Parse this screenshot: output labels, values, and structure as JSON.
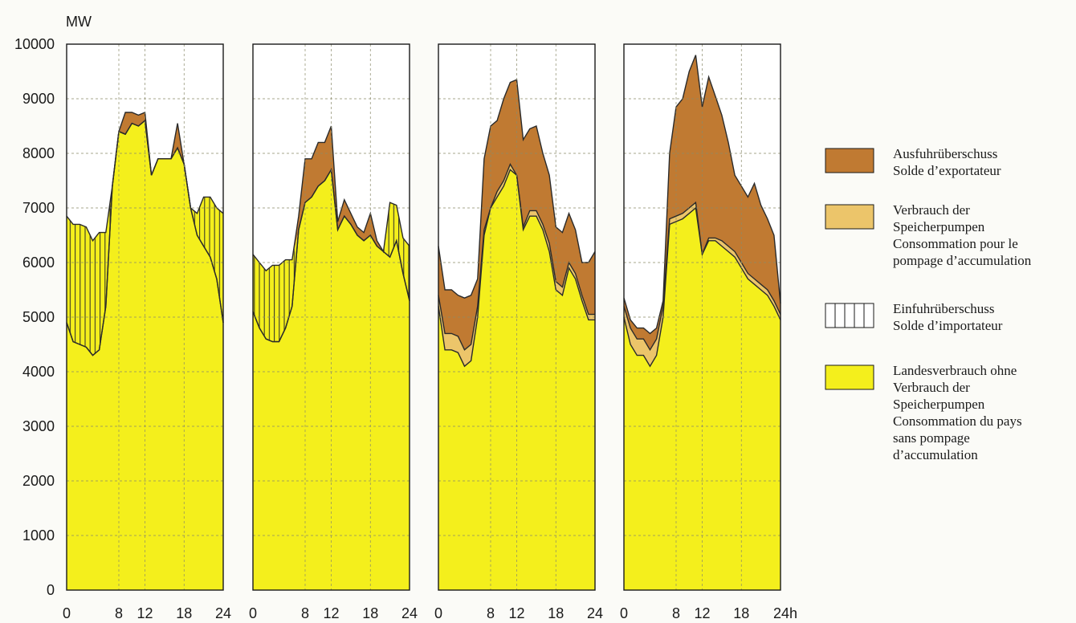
{
  "chart_data": {
    "type": "area",
    "y_unit": "MW",
    "ylim": [
      0,
      10000
    ],
    "y_ticks": [
      "0",
      "1000",
      "2000",
      "3000",
      "4000",
      "5000",
      "6000",
      "7000",
      "8000",
      "9000",
      "10000"
    ],
    "x_ticks": [
      [
        "0",
        "8",
        "12",
        "18",
        "24"
      ],
      [
        "0",
        "8",
        "12",
        "18",
        "24"
      ],
      [
        "0",
        "8",
        "12",
        "18",
        "24"
      ],
      [
        "0",
        "8",
        "12",
        "18",
        "24h"
      ]
    ],
    "grid": true,
    "colors": {
      "export": "#c07a32",
      "pumping": "#ecc56a",
      "import": "#f4ef1c",
      "consumption": "#f4ef1c",
      "outline": "#2a2a2a"
    },
    "legend": [
      {
        "key": "export",
        "lines": [
          "Ausfuhrüberschuss",
          "Solde d’exportateur"
        ]
      },
      {
        "key": "pumping",
        "lines": [
          "Verbrauch der",
          "Speicherpumpen",
          "Consommation pour le",
          "pompage d’accumulation"
        ]
      },
      {
        "key": "import",
        "lines": [
          "Einfuhrüberschuss",
          "Solde d’importateur"
        ]
      },
      {
        "key": "consumption",
        "lines": [
          "Landesverbrauch ohne",
          "Verbrauch der",
          "Speicherpumpen",
          "Consommation du pays",
          "sans pompage",
          "d’accumulation"
        ]
      }
    ],
    "x_hours": [
      0,
      1,
      2,
      3,
      4,
      5,
      6,
      7,
      8,
      9,
      10,
      11,
      12,
      13,
      14,
      15,
      16,
      17,
      18,
      19,
      20,
      21,
      22,
      23,
      24
    ],
    "panels": [
      {
        "consumption": [
          4900,
          4550,
          4500,
          4450,
          4300,
          4400,
          5200,
          7400,
          8400,
          8350,
          8550,
          8500,
          8600,
          7600,
          7900,
          7900,
          7900,
          8100,
          7800,
          7000,
          6500,
          6300,
          6100,
          5700,
          4900
        ],
        "pumping": [
          0,
          0,
          0,
          0,
          0,
          0,
          0,
          0,
          0,
          0,
          0,
          0,
          0,
          0,
          0,
          0,
          0,
          0,
          0,
          0,
          0,
          0,
          0,
          0,
          0
        ],
        "import": [
          1950,
          2150,
          2200,
          2200,
          2100,
          2150,
          1350,
          0,
          0,
          0,
          0,
          0,
          0,
          0,
          0,
          0,
          0,
          0,
          0,
          0,
          400,
          900,
          1100,
          1300,
          2000
        ],
        "export": [
          0,
          0,
          0,
          0,
          0,
          0,
          0,
          0,
          0,
          400,
          200,
          200,
          150,
          0,
          0,
          0,
          0,
          450,
          0,
          0,
          0,
          0,
          0,
          0,
          0
        ]
      },
      {
        "consumption": [
          5100,
          4800,
          4600,
          4550,
          4550,
          4800,
          5200,
          6600,
          7100,
          7200,
          7400,
          7500,
          7700,
          6600,
          6850,
          6700,
          6500,
          6400,
          6500,
          6300,
          6200,
          6100,
          6400,
          5800,
          5300
        ],
        "pumping": [
          0,
          0,
          0,
          0,
          0,
          0,
          0,
          0,
          0,
          0,
          0,
          0,
          0,
          0,
          0,
          0,
          0,
          0,
          0,
          0,
          0,
          0,
          0,
          0,
          0
        ],
        "import": [
          1050,
          1200,
          1250,
          1400,
          1400,
          1250,
          850,
          0,
          0,
          0,
          0,
          0,
          0,
          0,
          0,
          0,
          0,
          0,
          0,
          0,
          0,
          1000,
          650,
          650,
          1000
        ],
        "export": [
          0,
          0,
          0,
          0,
          0,
          0,
          0,
          250,
          800,
          700,
          800,
          700,
          800,
          150,
          300,
          200,
          150,
          150,
          400,
          100,
          0,
          0,
          0,
          0,
          0
        ]
      },
      {
        "consumption": [
          5200,
          4400,
          4400,
          4350,
          4100,
          4200,
          5000,
          6500,
          7000,
          7200,
          7400,
          7700,
          7600,
          6600,
          6850,
          6850,
          6600,
          6200,
          5500,
          5400,
          5900,
          5700,
          5300,
          4950,
          4950
        ],
        "pumping": [
          200,
          300,
          300,
          300,
          300,
          300,
          200,
          100,
          0,
          100,
          100,
          100,
          0,
          50,
          100,
          100,
          100,
          150,
          150,
          150,
          100,
          100,
          100,
          100,
          100
        ],
        "import": [
          0,
          0,
          0,
          0,
          0,
          0,
          0,
          0,
          0,
          0,
          0,
          0,
          0,
          0,
          0,
          0,
          0,
          0,
          0,
          0,
          0,
          0,
          0,
          0,
          0
        ],
        "export": [
          900,
          800,
          800,
          750,
          950,
          900,
          500,
          1300,
          1500,
          1300,
          1500,
          1500,
          1750,
          1600,
          1500,
          1550,
          1300,
          1250,
          1000,
          1000,
          900,
          800,
          600,
          950,
          1150
        ]
      },
      {
        "consumption": [
          5000,
          4500,
          4300,
          4300,
          4100,
          4300,
          5000,
          6700,
          6750,
          6800,
          6900,
          7000,
          6150,
          6400,
          6400,
          6300,
          6200,
          6100,
          5900,
          5700,
          5600,
          5500,
          5400,
          5200,
          4950
        ],
        "pumping": [
          200,
          300,
          300,
          300,
          300,
          300,
          200,
          100,
          100,
          100,
          100,
          100,
          0,
          50,
          50,
          100,
          100,
          100,
          100,
          100,
          100,
          100,
          100,
          100,
          100
        ],
        "import": [
          0,
          0,
          0,
          0,
          0,
          0,
          0,
          0,
          0,
          0,
          0,
          0,
          0,
          0,
          0,
          0,
          0,
          0,
          0,
          0,
          0,
          0,
          0,
          0,
          0
        ],
        "export": [
          150,
          150,
          200,
          200,
          300,
          200,
          100,
          1200,
          2000,
          2100,
          2500,
          2700,
          2700,
          2950,
          2600,
          2300,
          1900,
          1400,
          1400,
          1400,
          1750,
          1450,
          1300,
          1200,
          200
        ]
      }
    ]
  }
}
